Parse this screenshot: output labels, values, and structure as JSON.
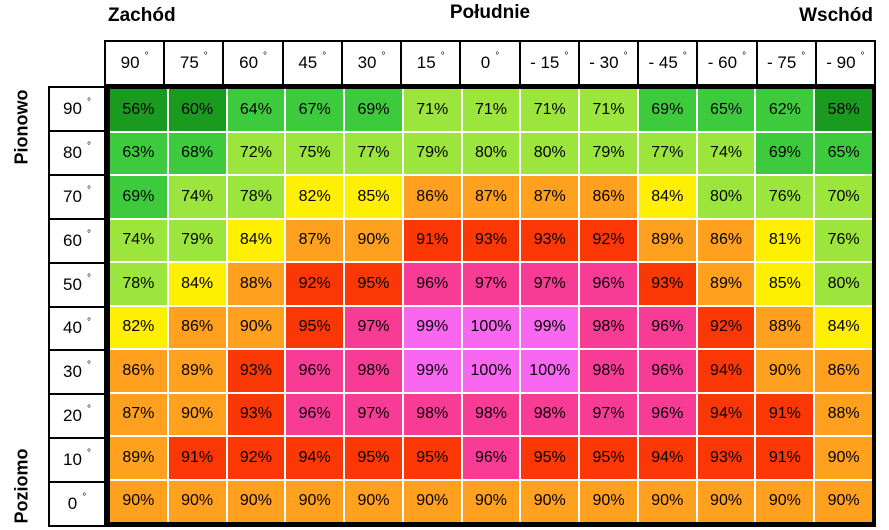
{
  "title_labels": {
    "west": "Zachód",
    "south": "Południe",
    "east": "Wschód"
  },
  "side_labels": {
    "vertical": "Pionowo",
    "horizontal": "Poziomo"
  },
  "degree_symbol": "°",
  "cell_suffix": "%",
  "chart_data": {
    "type": "heatmap",
    "title": "",
    "xlabel_top": [
      "Zachód",
      "Południe",
      "Wschód"
    ],
    "ylabel_left": [
      "Pionowo",
      "Poziomo"
    ],
    "col_labels": [
      "90",
      "75",
      "60",
      "45",
      "30",
      "15",
      "0",
      "- 15",
      "- 30",
      "- 45",
      "- 60",
      "- 75",
      "- 90"
    ],
    "row_labels": [
      "90",
      "80",
      "70",
      "60",
      "50",
      "40",
      "30",
      "20",
      "10",
      "0"
    ],
    "columns_degrees": [
      90,
      75,
      60,
      45,
      30,
      15,
      0,
      -15,
      -30,
      -45,
      -60,
      -75,
      -90
    ],
    "rows_degrees": [
      90,
      80,
      70,
      60,
      50,
      40,
      30,
      20,
      10,
      0
    ],
    "values_unit": "%",
    "values": [
      [
        56,
        60,
        64,
        67,
        69,
        71,
        71,
        71,
        71,
        69,
        65,
        62,
        58
      ],
      [
        63,
        68,
        72,
        75,
        77,
        79,
        80,
        80,
        79,
        77,
        74,
        69,
        65
      ],
      [
        69,
        74,
        78,
        82,
        85,
        86,
        87,
        87,
        86,
        84,
        80,
        76,
        70
      ],
      [
        74,
        79,
        84,
        87,
        90,
        91,
        93,
        93,
        92,
        89,
        86,
        81,
        76
      ],
      [
        78,
        84,
        88,
        92,
        95,
        96,
        97,
        97,
        96,
        93,
        89,
        85,
        80
      ],
      [
        82,
        86,
        90,
        95,
        97,
        99,
        100,
        99,
        98,
        96,
        92,
        88,
        84
      ],
      [
        86,
        89,
        93,
        96,
        98,
        99,
        100,
        100,
        98,
        96,
        94,
        90,
        86
      ],
      [
        87,
        90,
        93,
        96,
        97,
        98,
        98,
        98,
        97,
        96,
        94,
        91,
        88
      ],
      [
        89,
        91,
        92,
        94,
        95,
        95,
        96,
        95,
        95,
        94,
        93,
        91,
        90
      ],
      [
        90,
        90,
        90,
        90,
        90,
        90,
        90,
        90,
        90,
        90,
        90,
        90,
        90
      ]
    ],
    "value_range": [
      56,
      100
    ],
    "color_scale": [
      {
        "max": 60,
        "color": "#1A9A1E"
      },
      {
        "max": 69,
        "color": "#3DCB3D"
      },
      {
        "max": 80,
        "color": "#9CE53C"
      },
      {
        "max": 85,
        "color": "#FFEF00"
      },
      {
        "max": 90,
        "color": "#FFA01E"
      },
      {
        "max": 95,
        "color": "#FA3705"
      },
      {
        "max": 98,
        "color": "#F83C96"
      },
      {
        "max": 100,
        "color": "#F767F0"
      }
    ]
  }
}
